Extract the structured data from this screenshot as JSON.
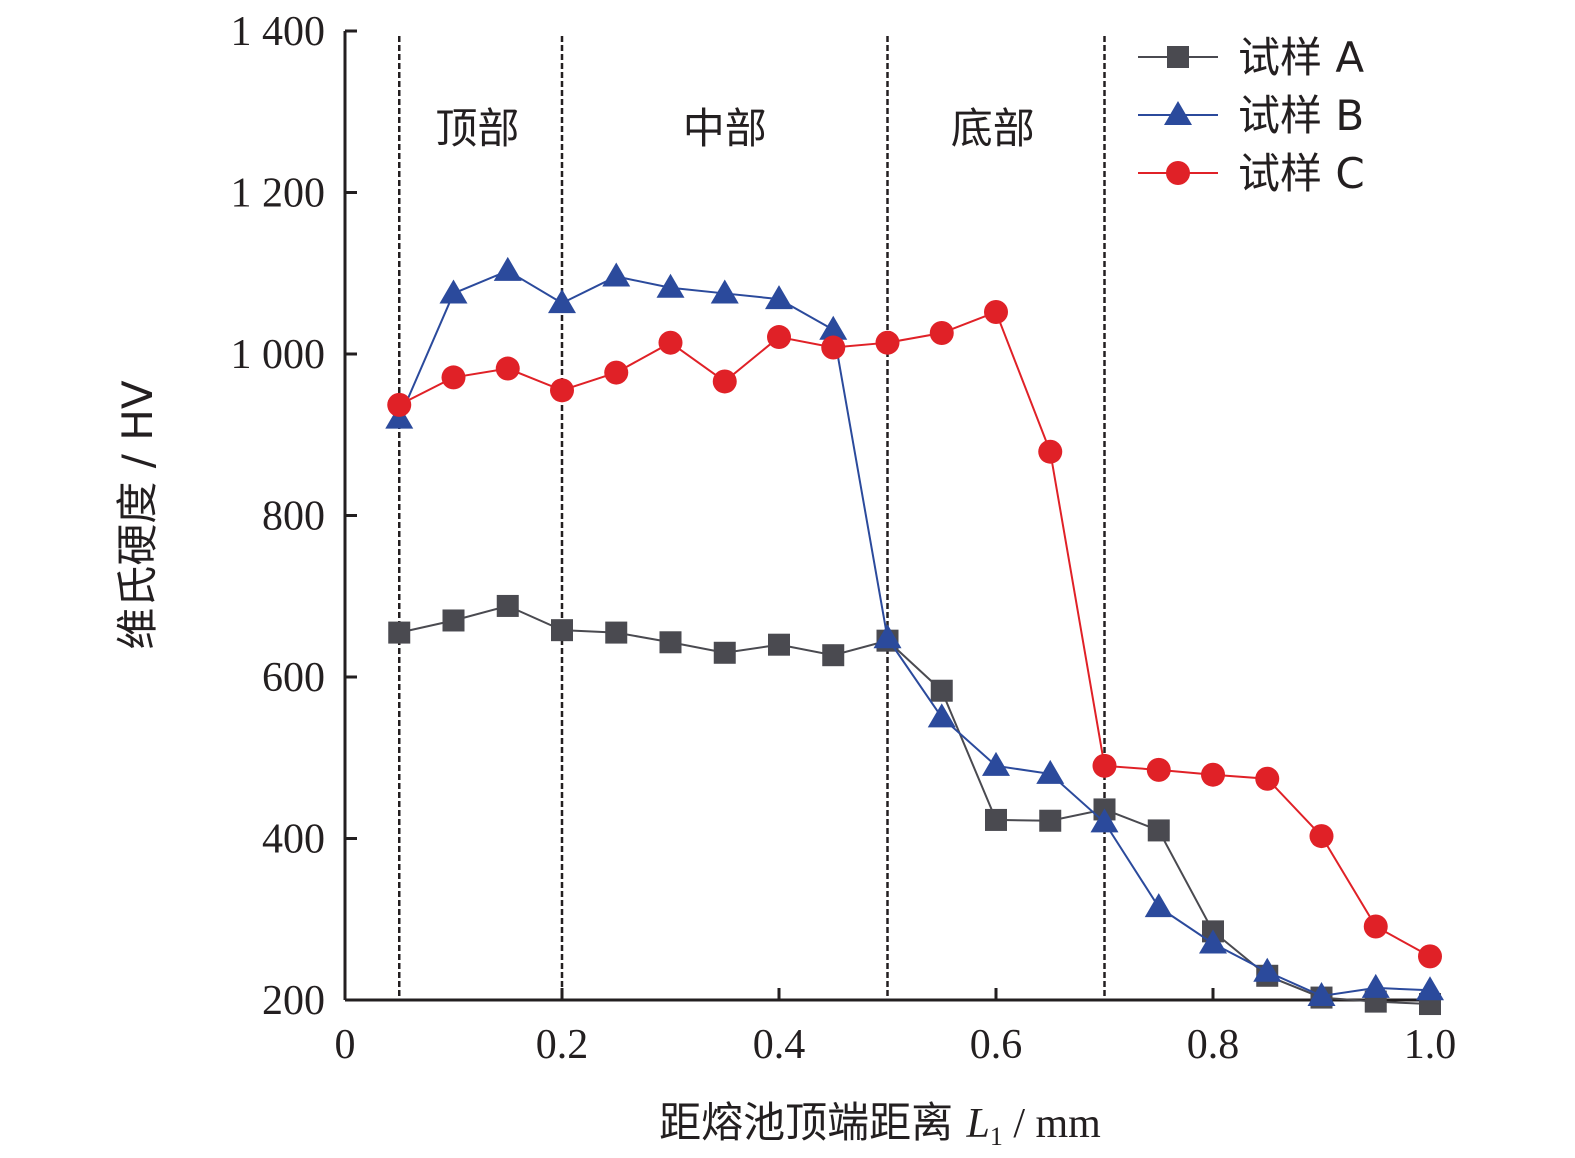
{
  "chart_data": {
    "type": "line",
    "xlabel_text": "距熔池顶端距离 ",
    "xlabel_var": "L",
    "xlabel_sub": "1",
    "xlabel_unit": " / mm",
    "ylabel": "维氏硬度 / HV",
    "xlim": [
      0,
      1.0
    ],
    "ylim": [
      200,
      1400
    ],
    "xticks": [
      "0",
      "0.2",
      "0.4",
      "0.6",
      "0.8",
      "1.0"
    ],
    "xtick_values": [
      0,
      0.2,
      0.4,
      0.6,
      0.8,
      1.0
    ],
    "yticks": [
      "200",
      "400",
      "600",
      "800",
      "1 000",
      "1 200",
      "1 400"
    ],
    "ytick_values": [
      200,
      400,
      600,
      800,
      1000,
      1200,
      1400
    ],
    "region_dividers": [
      0.05,
      0.2,
      0.5,
      0.7
    ],
    "regions": [
      {
        "label": "顶部",
        "x": 0.122
      },
      {
        "label": "中部",
        "x": 0.35
      },
      {
        "label": "底部",
        "x": 0.597
      }
    ],
    "legend_position": "top-right",
    "series": [
      {
        "name": "试样 A",
        "color": "#4a4a50",
        "marker": "square",
        "x": [
          0.05,
          0.1,
          0.15,
          0.2,
          0.25,
          0.3,
          0.35,
          0.4,
          0.45,
          0.5,
          0.55,
          0.6,
          0.65,
          0.7,
          0.75,
          0.8,
          0.85,
          0.9,
          0.95,
          1.0
        ],
        "values": [
          655,
          670,
          688,
          658,
          655,
          643,
          630,
          640,
          627,
          645,
          583,
          423,
          422,
          436,
          410,
          285,
          230,
          203,
          198,
          195
        ]
      },
      {
        "name": "试样 B",
        "color": "#2b4a9c",
        "marker": "triangle",
        "x": [
          0.05,
          0.1,
          0.15,
          0.2,
          0.25,
          0.3,
          0.35,
          0.4,
          0.45,
          0.5,
          0.55,
          0.6,
          0.65,
          0.7,
          0.75,
          0.8,
          0.85,
          0.9,
          0.95,
          1.0
        ],
        "values": [
          920,
          1075,
          1103,
          1063,
          1096,
          1082,
          1075,
          1068,
          1030,
          648,
          550,
          490,
          480,
          420,
          315,
          270,
          235,
          205,
          215,
          212
        ]
      },
      {
        "name": "试样 C",
        "color": "#e02127",
        "marker": "circle",
        "x": [
          0.05,
          0.1,
          0.15,
          0.2,
          0.25,
          0.3,
          0.35,
          0.4,
          0.45,
          0.5,
          0.55,
          0.6,
          0.65,
          0.7,
          0.75,
          0.8,
          0.85,
          0.9,
          0.95,
          1.0
        ],
        "values": [
          937,
          971,
          982,
          955,
          977,
          1014,
          966,
          1021,
          1008,
          1014,
          1026,
          1052,
          879,
          490,
          485,
          479,
          474,
          403,
          291,
          254
        ]
      }
    ]
  }
}
